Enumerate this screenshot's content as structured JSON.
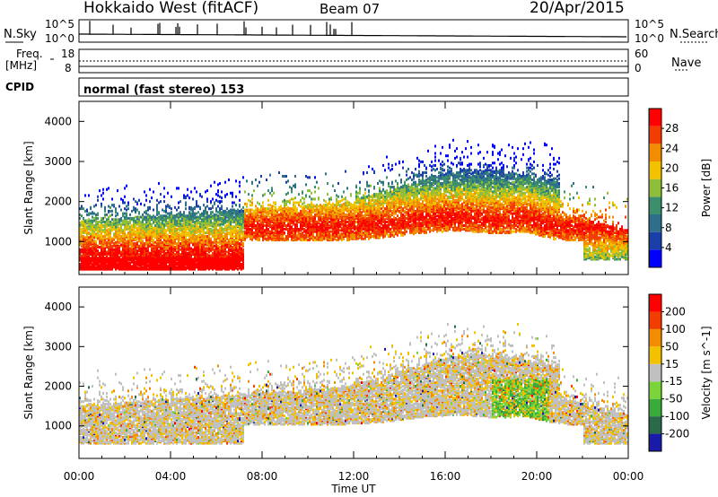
{
  "header": {
    "radar": "Hokkaido West (fitACF)",
    "beam": "Beam 07",
    "date": "20/Apr/2015"
  },
  "noise_panel": {
    "left_label": "N.Sky",
    "right_label": "N.Search",
    "left_ticks": [
      "10^5",
      "10^0"
    ],
    "right_ticks": [
      "10^5",
      "10^0"
    ]
  },
  "freq_panel": {
    "left_label_top": "Freq.",
    "left_label_unit": "[MHz]",
    "left_ticks": [
      "18",
      "8"
    ],
    "right_label": "Nave",
    "right_ticks": [
      "60",
      "0"
    ]
  },
  "cpid": {
    "label": "CPID",
    "value": "normal (fast stereo) 153"
  },
  "chart_data": [
    {
      "type": "heatmap",
      "title": "",
      "ylabel": "Slant Range [km]",
      "xlabel": "",
      "ylim": [
        180,
        4500
      ],
      "xlim_hours": [
        0,
        24
      ],
      "y_ticks": [
        "1000",
        "2000",
        "3000",
        "4000"
      ],
      "x_tick_labels": [
        "00:00",
        "04:00",
        "08:00",
        "12:00",
        "16:00",
        "20:00",
        "00:00"
      ],
      "colorbar": {
        "label": "Power [dB]",
        "range": [
          0,
          32
        ],
        "ticks": [
          "4",
          "8",
          "12",
          "16",
          "20",
          "24",
          "28"
        ],
        "colors": [
          "#0000ff",
          "#1a3fa8",
          "#2f6e8a",
          "#3c8f6d",
          "#8fbe3a",
          "#f2c200",
          "#f28c00",
          "#f23c00",
          "#ff0000"
        ]
      }
    },
    {
      "type": "heatmap",
      "title": "",
      "ylabel": "Slant Range [km]",
      "xlabel": "Time UT",
      "ylim": [
        180,
        4500
      ],
      "xlim_hours": [
        0,
        24
      ],
      "y_ticks": [
        "1000",
        "2000",
        "3000",
        "4000"
      ],
      "x_tick_labels": [
        "00:00",
        "04:00",
        "08:00",
        "12:00",
        "16:00",
        "20:00",
        "00:00"
      ],
      "colorbar": {
        "label": "Velocity [m s^-1]",
        "tick_labels": [
          "200",
          "100",
          "50",
          "15",
          "-15",
          "-50",
          "-100",
          "-200"
        ],
        "colors": [
          "#1a1aa8",
          "#2a6a4a",
          "#3aaa3a",
          "#7ad43a",
          "#c0c0c0",
          "#f2c200",
          "#f28c00",
          "#f23c00",
          "#ff0000"
        ]
      }
    }
  ]
}
